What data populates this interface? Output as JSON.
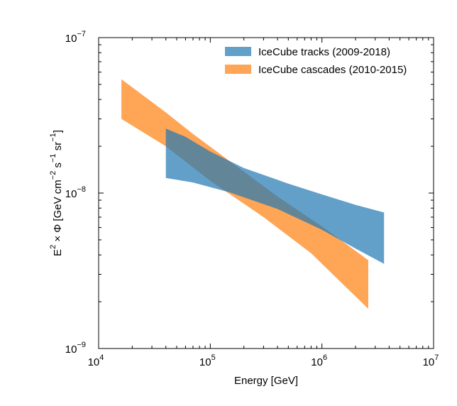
{
  "chart_data": {
    "type": "area",
    "title": "",
    "xlabel": "Energy [GeV]",
    "ylabel": {
      "parts": [
        "E",
        "2",
        " × Φ [GeV cm",
        "−2",
        " s",
        "−1",
        " sr",
        "−1",
        "]"
      ]
    },
    "xscale": "log",
    "yscale": "log",
    "xlim": [
      10000,
      10000000
    ],
    "ylim": [
      1e-09,
      1e-07
    ],
    "grid": false,
    "legend_position": "top-right",
    "x_ticks": [
      {
        "value": 10000,
        "base": "10",
        "exp": "4"
      },
      {
        "value": 100000,
        "base": "10",
        "exp": "5"
      },
      {
        "value": 1000000,
        "base": "10",
        "exp": "6"
      },
      {
        "value": 10000000,
        "base": "10",
        "exp": "7"
      }
    ],
    "y_ticks": [
      {
        "value": 1e-09,
        "base": "10",
        "exp": "−9"
      },
      {
        "value": 1e-08,
        "base": "10",
        "exp": "−8"
      },
      {
        "value": 1e-07,
        "base": "10",
        "exp": "−7"
      }
    ],
    "series": [
      {
        "name": "IceCube cascades (2010-2015)",
        "color": "#ff7f0e",
        "alpha": 0.7,
        "upper": [
          [
            16000,
            5.4e-08
          ],
          [
            40000,
            3.3e-08
          ],
          [
            70000,
            2.4e-08
          ],
          [
            150000,
            1.6e-08
          ],
          [
            400000,
            9.5e-09
          ],
          [
            1000000,
            6.1e-09
          ],
          [
            2600000,
            3.7e-09
          ]
        ],
        "lower": [
          [
            16000,
            3e-08
          ],
          [
            40000,
            2e-08
          ],
          [
            100000,
            1.2e-08
          ],
          [
            300000,
            7e-09
          ],
          [
            800000,
            4.1e-09
          ],
          [
            2600000,
            1.8e-09
          ]
        ]
      },
      {
        "name": "IceCube tracks (2009-2018)",
        "color": "#1f77b4",
        "alpha": 0.7,
        "upper": [
          [
            40000,
            2.6e-08
          ],
          [
            60000,
            2.3e-08
          ],
          [
            100000,
            1.85e-08
          ],
          [
            200000,
            1.45e-08
          ],
          [
            500000,
            1.15e-08
          ],
          [
            1000000,
            9.8e-09
          ],
          [
            2000000,
            8.4e-09
          ],
          [
            3600000,
            7.5e-09
          ]
        ],
        "lower": [
          [
            40000,
            1.25e-08
          ],
          [
            70000,
            1.17e-08
          ],
          [
            150000,
            1.01e-08
          ],
          [
            400000,
            7.9e-09
          ],
          [
            1000000,
            5.8e-09
          ],
          [
            2000000,
            4.4e-09
          ],
          [
            3600000,
            3.5e-09
          ]
        ]
      }
    ],
    "legend_order": [
      "IceCube tracks (2009-2018)",
      "IceCube cascades (2010-2015)"
    ]
  }
}
